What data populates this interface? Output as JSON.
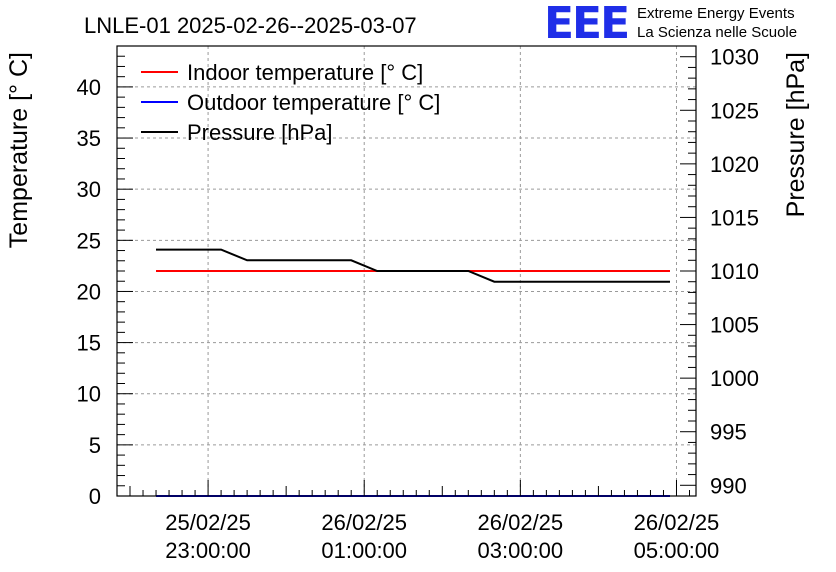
{
  "chart_data": {
    "type": "line",
    "title": "LNLE-01 2025-02-26--2025-03-07",
    "ylabel": "Temperature [° C]",
    "y2label": "Pressure [hPa]",
    "ylim": [
      0,
      44
    ],
    "y2lim": [
      989,
      1031
    ],
    "yticks": [
      0,
      5,
      10,
      15,
      20,
      25,
      30,
      35,
      40
    ],
    "y2ticks": [
      990,
      995,
      1000,
      1005,
      1010,
      1015,
      1020,
      1025,
      1030
    ],
    "xlim": [
      "2025-02-25 21:50:00",
      "2025-02-26 05:15:00"
    ],
    "xticks": [
      {
        "t": "2025-02-25 23:00:00",
        "date": "25/02/25",
        "time": "23:00:00"
      },
      {
        "t": "2025-02-26 01:00:00",
        "date": "26/02/25",
        "time": "01:00:00"
      },
      {
        "t": "2025-02-26 03:00:00",
        "date": "26/02/25",
        "time": "03:00:00"
      },
      {
        "t": "2025-02-26 05:00:00",
        "date": "26/02/25",
        "time": "05:00:00"
      }
    ],
    "grid": true,
    "legend_position": "top-left",
    "series": [
      {
        "name": "Indoor temperature [° C]",
        "color": "#ff0000",
        "axis": "left",
        "x": [
          "2025-02-25 22:20:00",
          "2025-02-26 04:55:00"
        ],
        "values": [
          22,
          22
        ]
      },
      {
        "name": "Outdoor temperature [° C]",
        "color": "#0000ff",
        "axis": "left",
        "x": [
          "2025-02-25 22:20:00",
          "2025-02-26 04:55:00"
        ],
        "values": [
          0,
          0
        ]
      },
      {
        "name": "Pressure [hPa]",
        "color": "#000000",
        "axis": "right",
        "x": [
          "2025-02-25 22:20:00",
          "2025-02-25 23:10:00",
          "2025-02-25 23:30:00",
          "2025-02-26 00:50:00",
          "2025-02-26 01:10:00",
          "2025-02-26 02:20:00",
          "2025-02-26 02:40:00",
          "2025-02-26 04:55:00"
        ],
        "values": [
          1012,
          1012,
          1011,
          1011,
          1010,
          1010,
          1009,
          1009
        ]
      }
    ]
  },
  "logo": {
    "mark": "EEE",
    "line1": "Extreme Energy Events",
    "line2": "La Scienza nelle Scuole",
    "color": "#1f2ee8"
  }
}
